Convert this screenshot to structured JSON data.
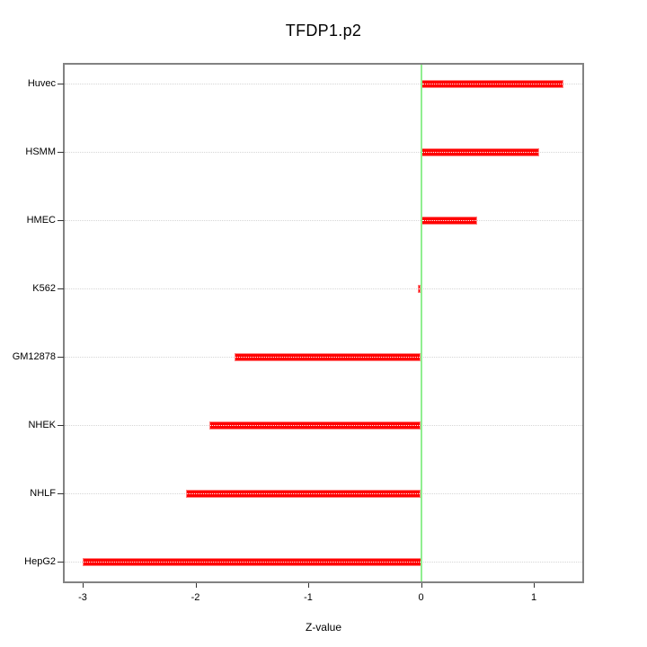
{
  "figure": {
    "title": "TFDP1.p2",
    "xlabel": "Z-value"
  },
  "chart_data": {
    "type": "bar",
    "orientation": "horizontal",
    "title": "TFDP1.p2",
    "xlabel": "Z-value",
    "ylabel": "",
    "categories": [
      "Huvec",
      "HSMM",
      "HMEC",
      "K562",
      "GM12878",
      "NHEK",
      "NHLF",
      "HepG2"
    ],
    "values": [
      1.26,
      1.05,
      0.5,
      -0.03,
      -1.65,
      -1.88,
      -2.08,
      -3.0
    ],
    "x_ticks": [
      -3,
      -2,
      -1,
      0,
      1
    ],
    "xlim": [
      -3.15,
      1.43
    ],
    "zero_reference_line": 0,
    "grid": "dotted-horizontal",
    "legend_position": "none",
    "colors": {
      "bar_fill": "#ff0000",
      "bar_edge": "#ff8080",
      "zero_line": "#90ee90",
      "grid": "#d6d6d6",
      "grid_on_bar": "#ffffff",
      "plot_border": "#828282",
      "tick": "#333333",
      "text": "#000000",
      "background": "#ffffff"
    }
  }
}
